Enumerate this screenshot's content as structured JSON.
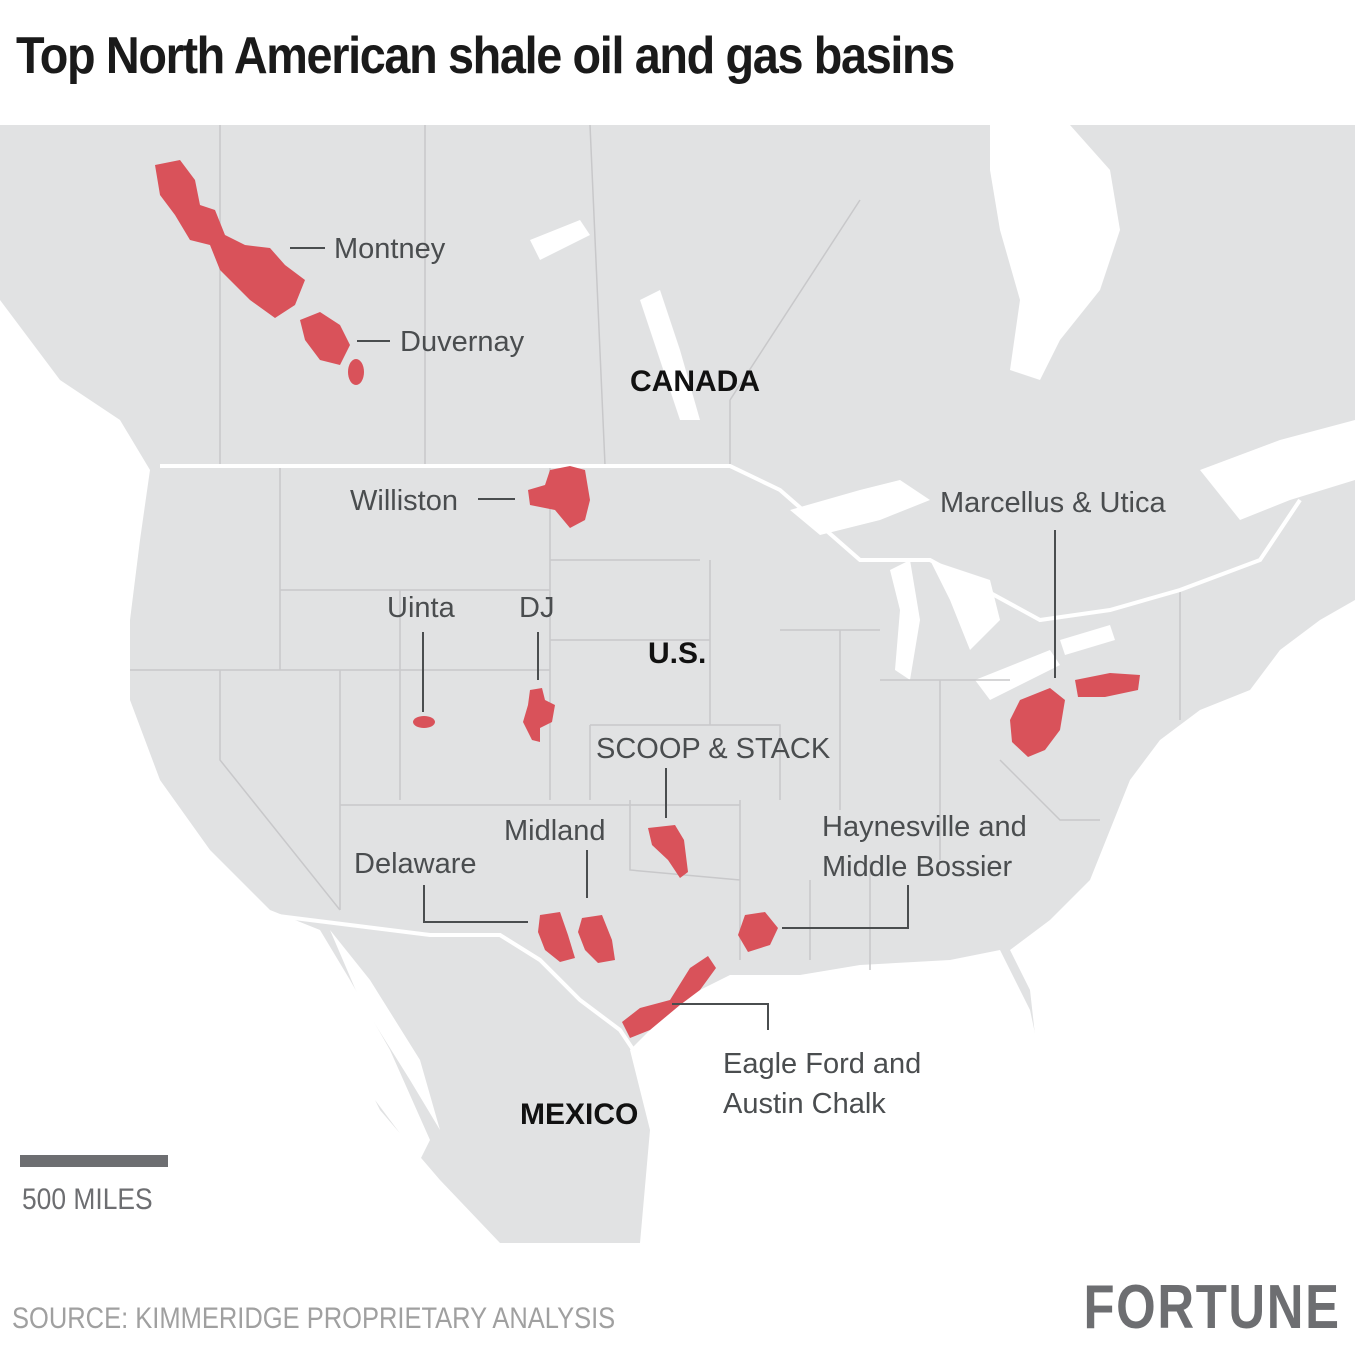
{
  "title": "Top North American shale oil and gas basins",
  "colors": {
    "land": "#e1e2e3",
    "basin": "#d9525a",
    "water": "#ffffff",
    "text": "#4a4d4f"
  },
  "countries": [
    "CANADA",
    "U.S.",
    "MEXICO"
  ],
  "basins": [
    "Montney",
    "Duvernay",
    "Williston",
    "Marcellus & Utica",
    "Uinta",
    "DJ",
    "SCOOP & STACK",
    "Midland",
    "Delaware",
    "Haynesville and",
    "Middle Bossier",
    "Eagle Ford and",
    "Austin Chalk"
  ],
  "scale": {
    "label": "500 MILES"
  },
  "source": "SOURCE: KIMMERIDGE PROPRIETARY ANALYSIS",
  "logo": "FORTUNE"
}
